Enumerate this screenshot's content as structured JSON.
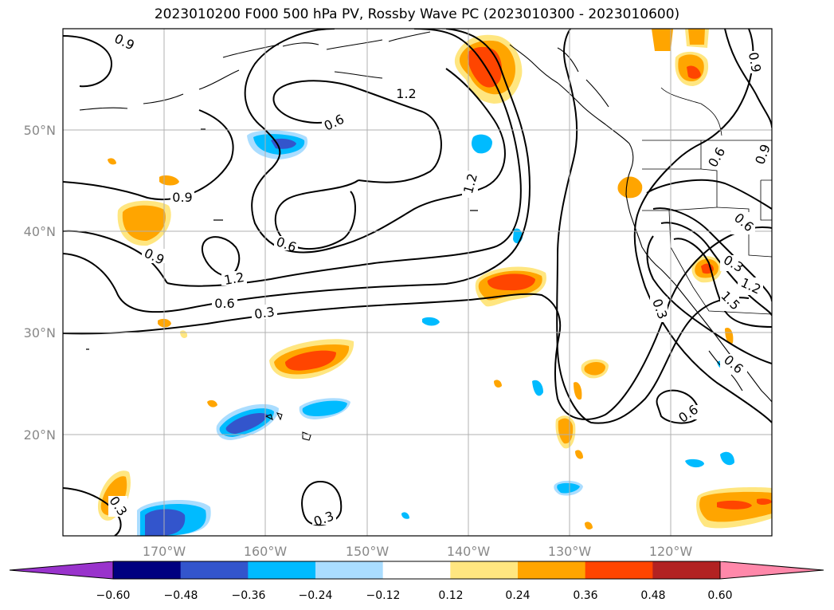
{
  "title": "2023010200 F000 500 hPa PV, Rossby Wave PC (2023010300 - 2023010600)",
  "latitude_labels": [
    "50°N",
    "40°N",
    "30°N",
    "20°N"
  ],
  "longitude_labels": [
    "170°W",
    "160°W",
    "150°W",
    "140°W",
    "130°W",
    "120°W"
  ],
  "contour_labels": [
    "0.9",
    "0.9",
    "0.9",
    "1.2",
    "0.6",
    "0.6",
    "1.2",
    "1.2",
    "0.6",
    "0.3",
    "0.6",
    "0.3",
    "0.6",
    "0.9",
    "0.6",
    "0.9",
    "1.2",
    "1.5",
    "0.3",
    "0.3",
    "0.6",
    "0.3"
  ],
  "colorbar": {
    "tick_labels": [
      "−0.60",
      "−0.48",
      "−0.36",
      "−0.24",
      "−0.12",
      "0.12",
      "0.24",
      "0.36",
      "0.48",
      "0.60"
    ],
    "colors": [
      "#9933cc",
      "#000080",
      "#3355cc",
      "#00bbff",
      "#aaddff",
      "#ffffff",
      "#ffe680",
      "#ffa500",
      "#ff4500",
      "#b22222",
      "#ff88aa"
    ]
  }
}
